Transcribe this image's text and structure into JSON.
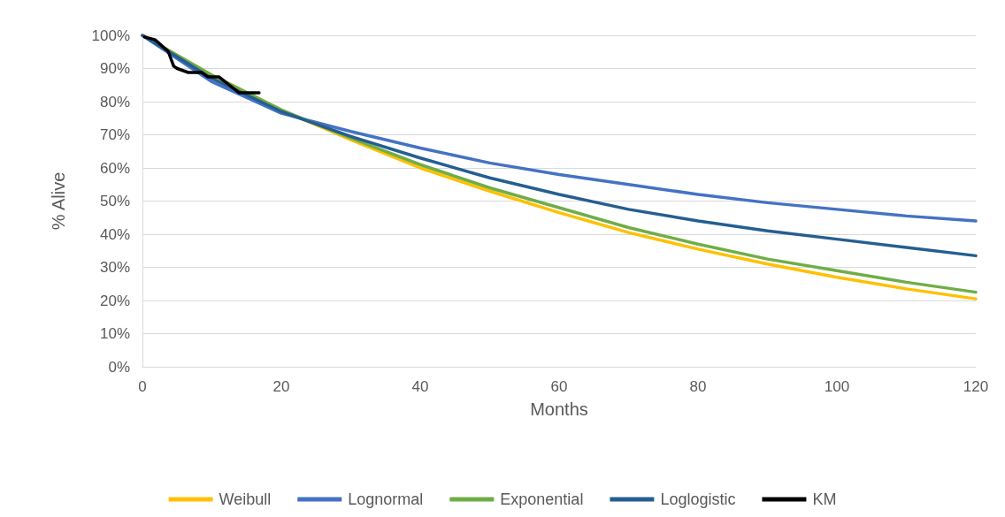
{
  "chart_data": {
    "type": "line",
    "xlabel": "Months",
    "ylabel": "% Alive",
    "xlim": [
      0,
      120
    ],
    "xticks": [
      0,
      20,
      40,
      60,
      80,
      100,
      120
    ],
    "ylim": [
      0,
      100
    ],
    "yticks": [
      {
        "value": 0,
        "label": "0%"
      },
      {
        "value": 10,
        "label": "10%"
      },
      {
        "value": 20,
        "label": "20%"
      },
      {
        "value": 30,
        "label": "30%"
      },
      {
        "value": 40,
        "label": "40%"
      },
      {
        "value": 50,
        "label": "50%"
      },
      {
        "value": 60,
        "label": "60%"
      },
      {
        "value": 70,
        "label": "70%"
      },
      {
        "value": 80,
        "label": "80%"
      },
      {
        "value": 90,
        "label": "90%"
      },
      {
        "value": 100,
        "label": "100%"
      }
    ],
    "grid": "y",
    "legend": "bottom",
    "marker": "none",
    "series": [
      {
        "name": "Weibull",
        "color": "#ffc000",
        "x": [
          0,
          10,
          20,
          30,
          40,
          50,
          60,
          70,
          80,
          90,
          100,
          110,
          120
        ],
        "values": [
          100,
          88,
          77.5,
          68.5,
          60,
          53,
          46.5,
          40.5,
          35.5,
          31,
          27,
          23.5,
          20.5
        ]
      },
      {
        "name": "Lognormal",
        "color": "#4472c4",
        "x": [
          0,
          10,
          20,
          30,
          40,
          50,
          60,
          70,
          80,
          90,
          100,
          110,
          120
        ],
        "values": [
          100,
          86,
          76.5,
          71,
          66,
          61.5,
          58,
          55,
          52,
          49.5,
          47.5,
          45.5,
          44
        ]
      },
      {
        "name": "Exponential",
        "color": "#70ad47",
        "x": [
          0,
          10,
          20,
          30,
          40,
          50,
          60,
          70,
          80,
          90,
          100,
          110,
          120
        ],
        "values": [
          100,
          88,
          77.5,
          69,
          61,
          54,
          48,
          42,
          37,
          32.5,
          29,
          25.5,
          22.5
        ]
      },
      {
        "name": "Loglogistic",
        "color": "#255e91",
        "x": [
          0,
          10,
          20,
          30,
          40,
          50,
          60,
          70,
          80,
          90,
          100,
          110,
          120
        ],
        "values": [
          100,
          87,
          77,
          69.5,
          63,
          57,
          52,
          47.5,
          44,
          41,
          38.5,
          36,
          33.5
        ]
      },
      {
        "name": "KM",
        "color": "#000000",
        "x": [
          0.3,
          1.8,
          3.7,
          4.5,
          5,
          6.6,
          8.5,
          9.4,
          11,
          13.9,
          16.8
        ],
        "values": [
          99.5,
          98.7,
          95.2,
          90.7,
          90,
          88.8,
          88.8,
          87.5,
          87.5,
          82.7,
          82.7
        ]
      }
    ]
  }
}
